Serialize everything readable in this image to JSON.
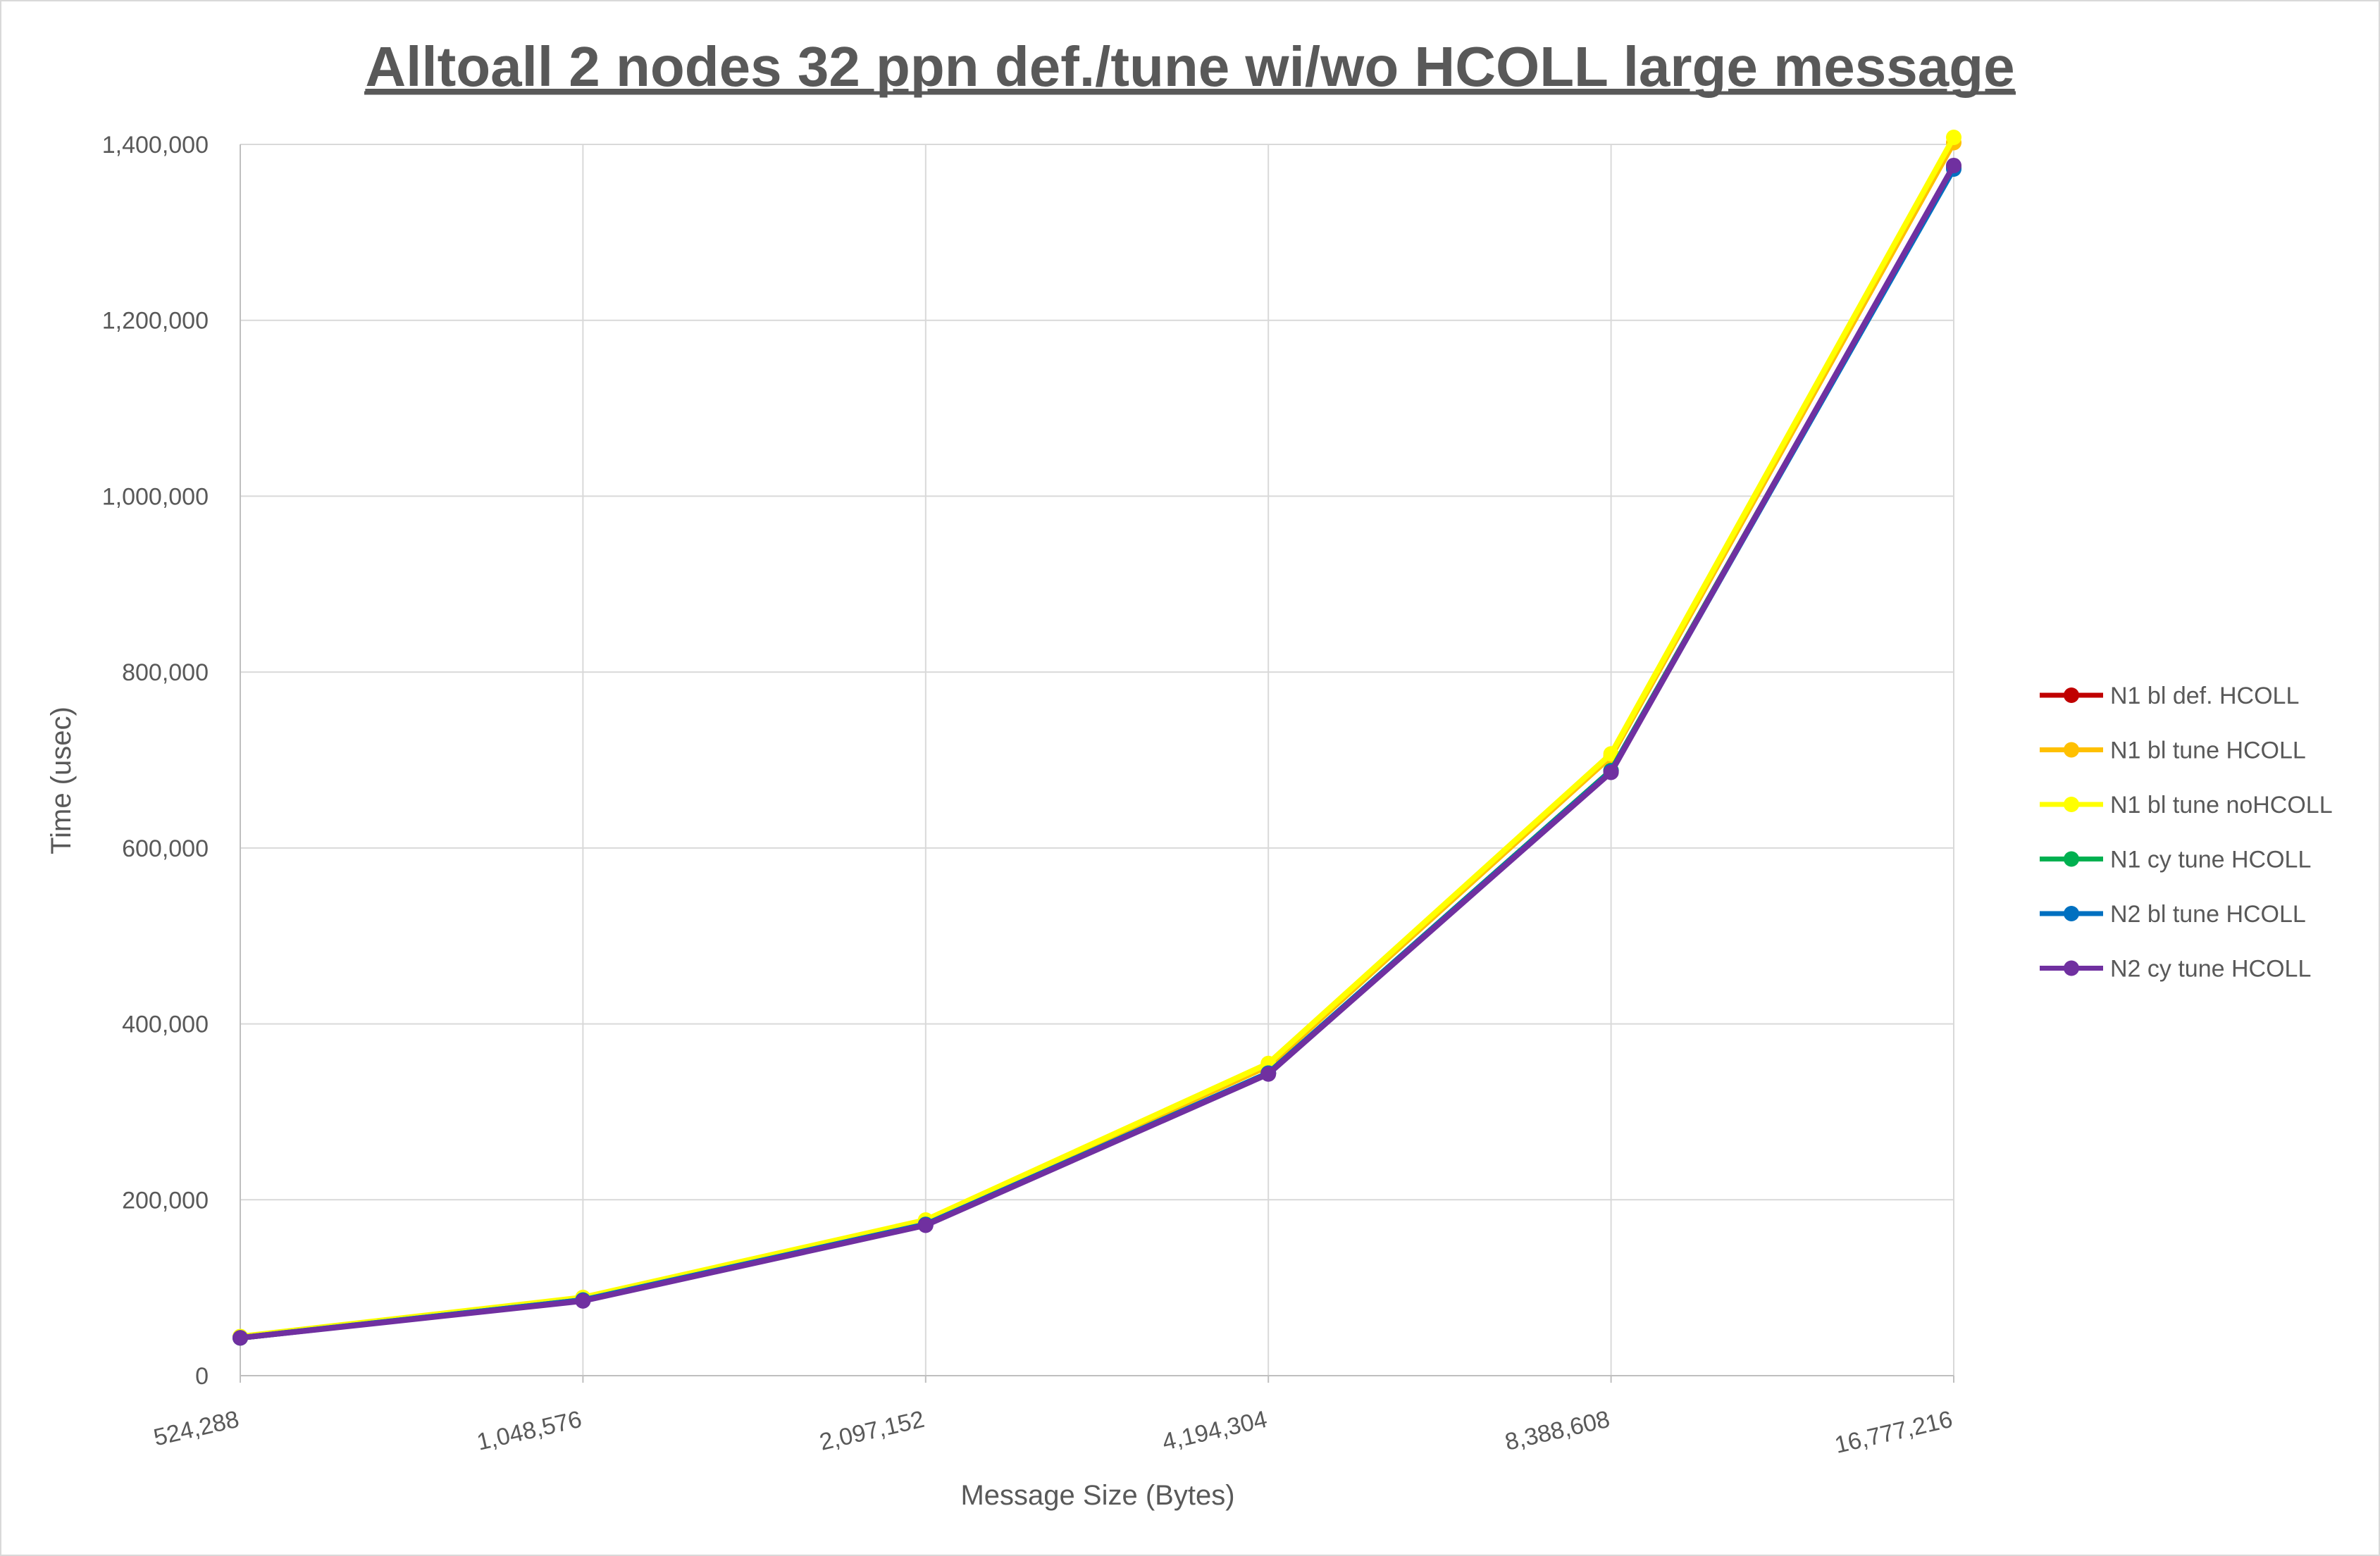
{
  "chart_data": {
    "type": "line",
    "title": "Alltoall 2 nodes 32 ppn def./tune wi/wo HCOLL large message",
    "xlabel": "Message Size (Bytes)",
    "ylabel": "Time (usec)",
    "categories": [
      "524,288",
      "1,048,576",
      "2,097,152",
      "4,194,304",
      "8,388,608",
      "16,777,216"
    ],
    "ylim": [
      0,
      1400000
    ],
    "yticks": [
      0,
      200000,
      400000,
      600000,
      800000,
      1000000,
      1200000,
      1400000
    ],
    "ytick_labels": [
      "0",
      "200,000",
      "400,000",
      "600,000",
      "800,000",
      "1,000,000",
      "1,200,000",
      "1,400,000"
    ],
    "grid": true,
    "legend_position": "right",
    "series": [
      {
        "name": "N1 bl def. HCOLL",
        "color": "#c00000",
        "values": [
          43000,
          86000,
          172000,
          344000,
          688000,
          1374000
        ]
      },
      {
        "name": "N1 bl tune HCOLL",
        "color": "#ffc000",
        "values": [
          44000,
          88000,
          176000,
          352000,
          704000,
          1402000
        ]
      },
      {
        "name": "N1 bl tune noHCOLL",
        "color": "#ffff00",
        "values": [
          44500,
          89000,
          177000,
          355000,
          707000,
          1408000
        ]
      },
      {
        "name": "N1 cy tune HCOLL",
        "color": "#00b050",
        "values": [
          43000,
          86000,
          172000,
          344000,
          688000,
          1374000
        ]
      },
      {
        "name": "N2 bl tune HCOLL",
        "color": "#0070c0",
        "values": [
          43000,
          86000,
          172000,
          344000,
          687000,
          1372000
        ]
      },
      {
        "name": "N2 cy tune HCOLL",
        "color": "#7030a0",
        "values": [
          43000,
          85000,
          171000,
          343000,
          686000,
          1376000
        ]
      }
    ]
  }
}
